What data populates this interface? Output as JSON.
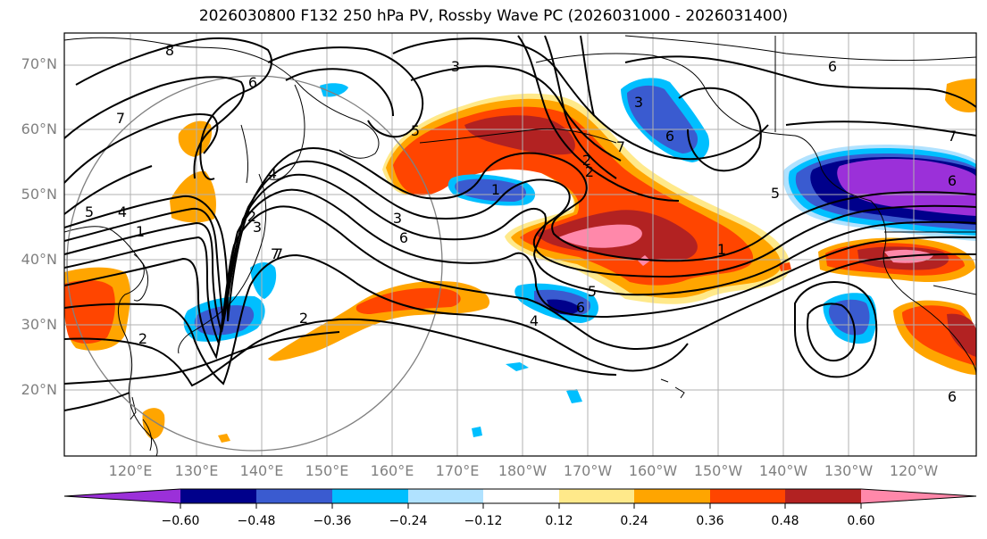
{
  "title": "2026030800 F132 250 hPa PV, Rossby Wave PC (2026031000 - 2026031400)",
  "map": {
    "lat_labels": [
      "70°N",
      "60°N",
      "50°N",
      "40°N",
      "30°N",
      "20°N"
    ],
    "lon_labels": [
      "120°E",
      "130°E",
      "140°E",
      "150°E",
      "160°E",
      "170°E",
      "180°W",
      "170°W",
      "160°W",
      "150°W",
      "140°W",
      "130°W",
      "120°W"
    ],
    "contour_labels": [
      "8",
      "7",
      "6",
      "5",
      "4",
      "3",
      "2",
      "1",
      "3",
      "4",
      "5",
      "6",
      "7",
      "2",
      "6",
      "1",
      "3",
      "2",
      "7",
      "5",
      "6",
      "1",
      "5",
      "6",
      "4",
      "3",
      "7",
      "6",
      "7",
      "2",
      "2",
      "6"
    ]
  },
  "colorbar": {
    "ticks": [
      "−0.60",
      "−0.48",
      "−0.36",
      "−0.24",
      "−0.12",
      "0.12",
      "0.24",
      "0.36",
      "0.48",
      "0.60"
    ],
    "colors": [
      "#9b30d9",
      "#00008b",
      "#3a5bd0",
      "#00bfff",
      "#b0e2ff",
      "#ffffff",
      "#ffe98a",
      "#ffa500",
      "#ff4500",
      "#b22222",
      "#ff88aa"
    ]
  }
}
